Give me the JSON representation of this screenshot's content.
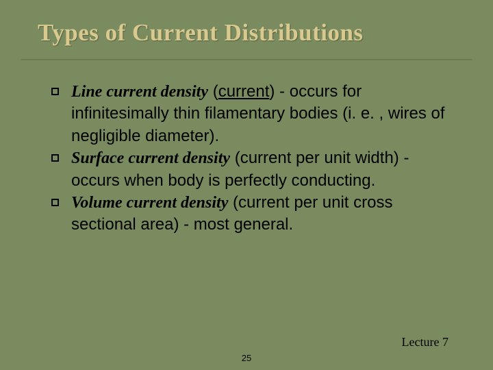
{
  "slide": {
    "title": "Types of Current Distributions",
    "background_color": "#7a8c5f",
    "title_color": "#d9c98e",
    "title_fontsize": 35,
    "body_fontsize": 24,
    "text_color": "#000000",
    "bullets": [
      {
        "term": "Line current density",
        "paren_underlined": "current",
        "rest": " - occurs for infinitesimally thin filamentary bodies (i. e. , wires of negligible diameter)."
      },
      {
        "term": "Surface current density",
        "paren_plain": "current per unit width",
        "rest": " - occurs when body is perfectly conducting."
      },
      {
        "term": "Volume current density",
        "paren_plain": "current per unit cross sectional area",
        "rest": " - most general."
      }
    ],
    "footer_lecture": "Lecture 7",
    "footer_page": "25"
  }
}
